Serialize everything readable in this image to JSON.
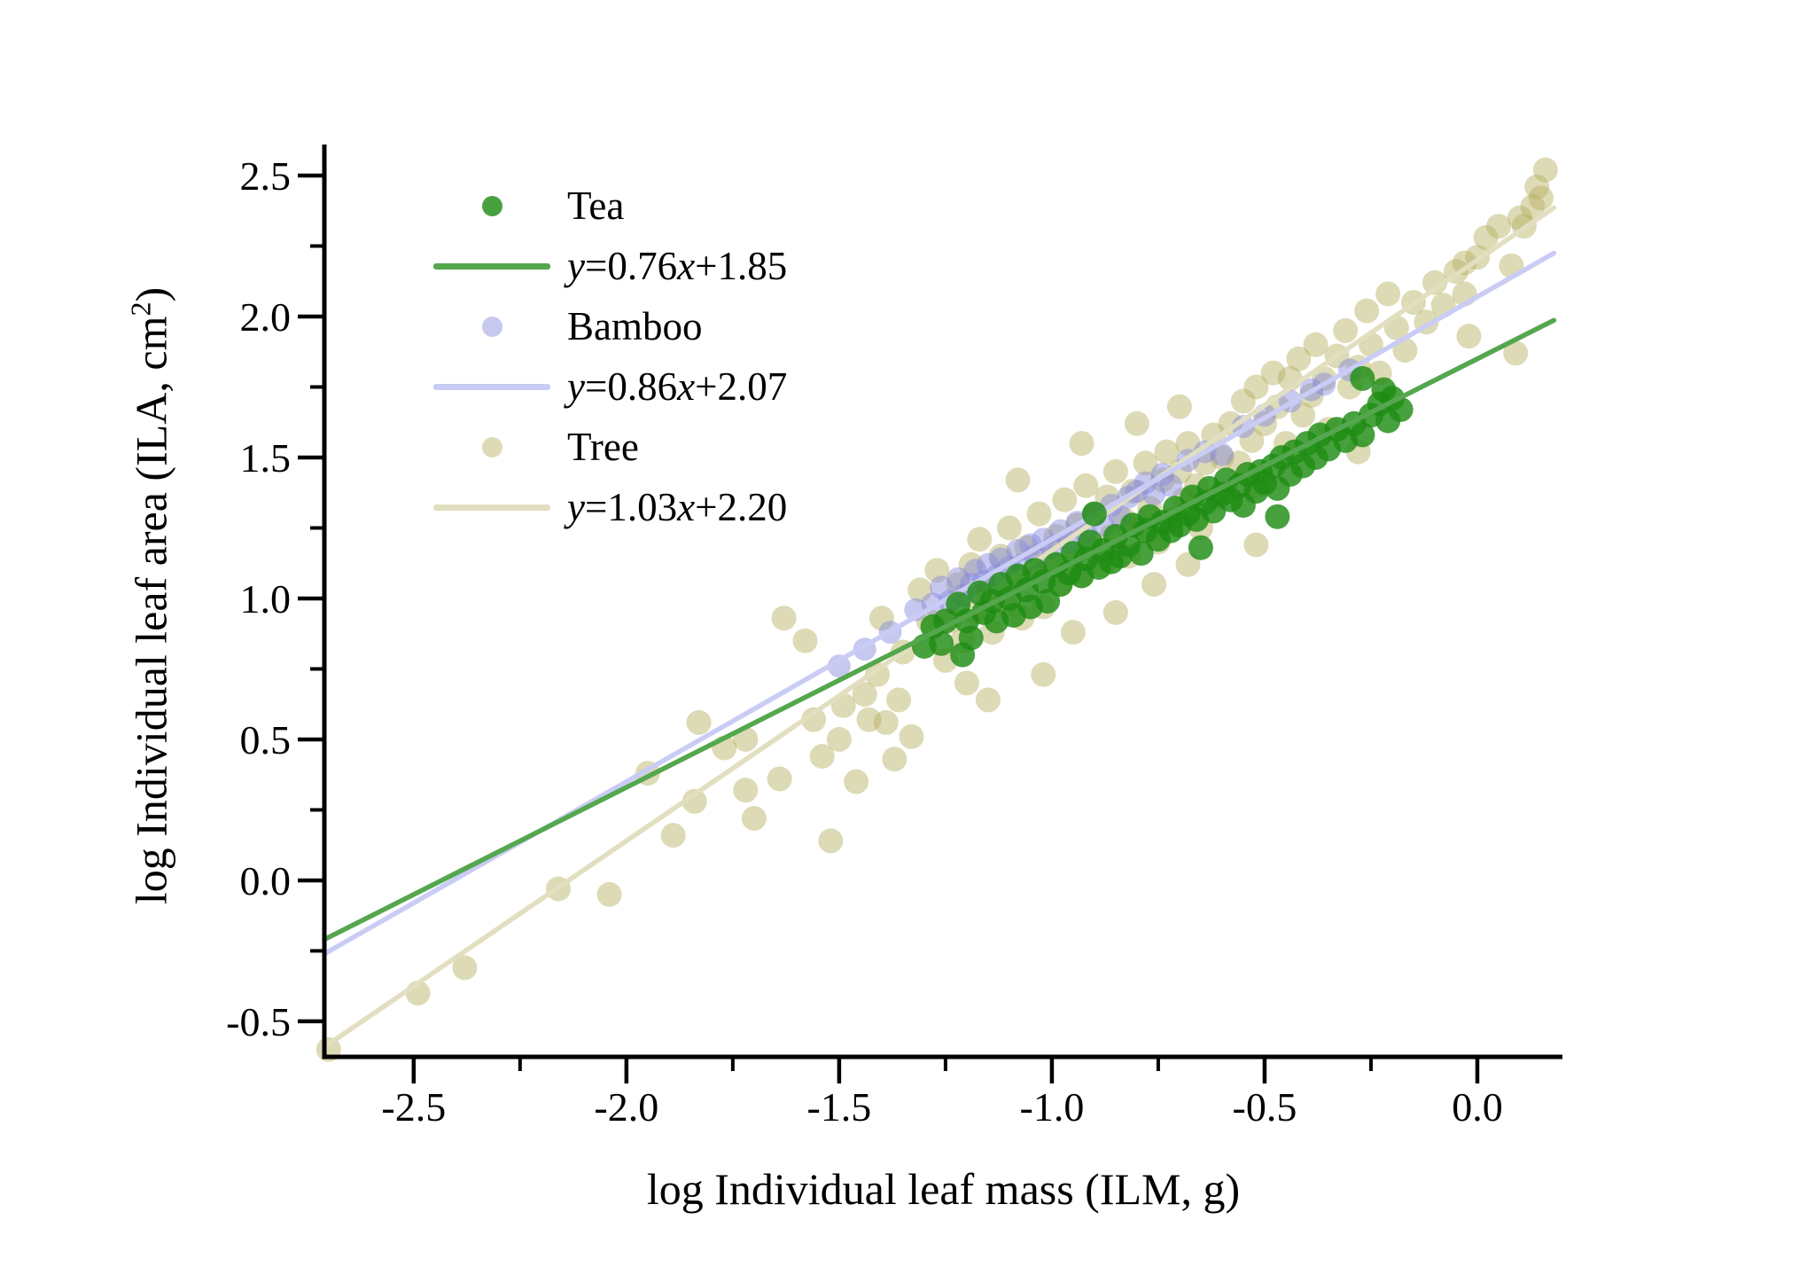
{
  "figure": {
    "background": "#ffffff"
  },
  "chart_data": {
    "type": "scatter",
    "xlabel": "log Individual leaf mass (ILM, g)",
    "ylabel": {
      "main": "log Individual leaf area (ILA, cm",
      "sup": "2",
      "close": ")"
    },
    "xlim": [
      -2.71,
      0.2
    ],
    "ylim": [
      -0.626,
      2.61
    ],
    "grid": false,
    "legend_position": "top-left",
    "x_ticks": {
      "values": [
        -2.5,
        -2.0,
        -1.5,
        -1.0,
        -0.5,
        0.0
      ],
      "labels": [
        "-2.5",
        "-2.0",
        "-1.5",
        "-1.0",
        "-0.5",
        "0.0"
      ],
      "minor": [
        -2.25,
        -1.75,
        -1.25,
        -0.75,
        -0.25
      ]
    },
    "y_ticks": {
      "values": [
        2.5,
        2.0,
        1.5,
        1.0,
        0.5,
        0.0,
        -0.5
      ],
      "labels": [
        "2.5",
        "2.0",
        "1.5",
        "1.0",
        "0.5",
        "0.0",
        "-0.5"
      ],
      "minor": [
        2.25,
        1.75,
        1.25,
        0.75,
        0.25,
        -0.25
      ]
    },
    "fit_x_range": [
      -2.71,
      0.18
    ],
    "series": [
      {
        "name": "Tea",
        "equation": "y=0.76x+1.85",
        "slope": 0.76,
        "intercept": 1.85,
        "dot_color": "#1f8c14",
        "dot_opacity": 0.82,
        "dot_radius": 14,
        "line_color": "#55a74e",
        "points": [
          [
            -1.3,
            0.83
          ],
          [
            -1.28,
            0.9
          ],
          [
            -1.26,
            0.84
          ],
          [
            -1.25,
            0.92
          ],
          [
            -1.22,
            0.98
          ],
          [
            -1.21,
            0.8
          ],
          [
            -1.2,
            0.92
          ],
          [
            -1.19,
            0.86
          ],
          [
            -1.17,
            1.02
          ],
          [
            -1.16,
            0.95
          ],
          [
            -1.14,
            0.99
          ],
          [
            -1.13,
            0.92
          ],
          [
            -1.12,
            1.05
          ],
          [
            -1.1,
            1.0
          ],
          [
            -1.09,
            0.94
          ],
          [
            -1.08,
            1.08
          ],
          [
            -1.06,
            1.03
          ],
          [
            -1.05,
            0.97
          ],
          [
            -1.04,
            1.1
          ],
          [
            -1.02,
            1.06
          ],
          [
            -1.01,
            0.99
          ],
          [
            -0.99,
            1.12
          ],
          [
            -0.98,
            1.05
          ],
          [
            -0.96,
            1.09
          ],
          [
            -0.95,
            1.16
          ],
          [
            -0.93,
            1.08
          ],
          [
            -0.92,
            1.14
          ],
          [
            -0.91,
            1.2
          ],
          [
            -0.9,
            1.3
          ],
          [
            -0.89,
            1.11
          ],
          [
            -0.88,
            1.17
          ],
          [
            -0.86,
            1.13
          ],
          [
            -0.85,
            1.22
          ],
          [
            -0.84,
            1.15
          ],
          [
            -0.82,
            1.19
          ],
          [
            -0.81,
            1.26
          ],
          [
            -0.79,
            1.16
          ],
          [
            -0.78,
            1.24
          ],
          [
            -0.77,
            1.29
          ],
          [
            -0.75,
            1.21
          ],
          [
            -0.74,
            1.27
          ],
          [
            -0.72,
            1.24
          ],
          [
            -0.71,
            1.32
          ],
          [
            -0.7,
            1.26
          ],
          [
            -0.68,
            1.3
          ],
          [
            -0.67,
            1.36
          ],
          [
            -0.66,
            1.28
          ],
          [
            -0.65,
            1.18
          ],
          [
            -0.64,
            1.34
          ],
          [
            -0.63,
            1.39
          ],
          [
            -0.62,
            1.31
          ],
          [
            -0.6,
            1.37
          ],
          [
            -0.59,
            1.42
          ],
          [
            -0.58,
            1.35
          ],
          [
            -0.56,
            1.4
          ],
          [
            -0.55,
            1.33
          ],
          [
            -0.54,
            1.44
          ],
          [
            -0.52,
            1.38
          ],
          [
            -0.51,
            1.45
          ],
          [
            -0.5,
            1.41
          ],
          [
            -0.48,
            1.47
          ],
          [
            -0.47,
            1.29
          ],
          [
            -0.47,
            1.39
          ],
          [
            -0.46,
            1.5
          ],
          [
            -0.44,
            1.44
          ],
          [
            -0.43,
            1.52
          ],
          [
            -0.41,
            1.47
          ],
          [
            -0.4,
            1.55
          ],
          [
            -0.38,
            1.5
          ],
          [
            -0.37,
            1.58
          ],
          [
            -0.35,
            1.53
          ],
          [
            -0.33,
            1.6
          ],
          [
            -0.31,
            1.56
          ],
          [
            -0.29,
            1.62
          ],
          [
            -0.27,
            1.78
          ],
          [
            -0.27,
            1.58
          ],
          [
            -0.25,
            1.65
          ],
          [
            -0.23,
            1.69
          ],
          [
            -0.22,
            1.74
          ],
          [
            -0.21,
            1.63
          ],
          [
            -0.2,
            1.71
          ],
          [
            -0.18,
            1.67
          ]
        ]
      },
      {
        "name": "Bamboo",
        "equation": "y=0.86x+2.07",
        "slope": 0.86,
        "intercept": 2.07,
        "dot_color": "#8285de",
        "dot_opacity": 0.45,
        "dot_radius": 13,
        "line_color": "#c9ccf4",
        "points": [
          [
            -1.5,
            0.76
          ],
          [
            -1.44,
            0.82
          ],
          [
            -1.38,
            0.88
          ],
          [
            -1.32,
            0.96
          ],
          [
            -1.28,
            0.98
          ],
          [
            -1.26,
            1.04
          ],
          [
            -1.24,
            0.99
          ],
          [
            -1.22,
            1.07
          ],
          [
            -1.21,
            1.01
          ],
          [
            -1.19,
            1.05
          ],
          [
            -1.18,
            1.1
          ],
          [
            -1.16,
            1.06
          ],
          [
            -1.15,
            1.12
          ],
          [
            -1.13,
            1.08
          ],
          [
            -1.12,
            1.14
          ],
          [
            -1.1,
            1.11
          ],
          [
            -1.08,
            1.17
          ],
          [
            -1.07,
            1.12
          ],
          [
            -1.05,
            1.19
          ],
          [
            -1.04,
            1.15
          ],
          [
            -1.02,
            1.21
          ],
          [
            -1.0,
            1.18
          ],
          [
            -0.98,
            1.24
          ],
          [
            -0.96,
            1.2
          ],
          [
            -0.94,
            1.27
          ],
          [
            -0.92,
            1.23
          ],
          [
            -0.9,
            1.3
          ],
          [
            -0.88,
            1.26
          ],
          [
            -0.86,
            1.33
          ],
          [
            -0.84,
            1.29
          ],
          [
            -0.82,
            1.36
          ],
          [
            -0.8,
            1.38
          ],
          [
            -0.78,
            1.41
          ],
          [
            -0.76,
            1.37
          ],
          [
            -0.74,
            1.44
          ],
          [
            -0.72,
            1.4
          ],
          [
            -0.68,
            1.49
          ],
          [
            -0.64,
            1.52
          ],
          [
            -0.6,
            1.51
          ],
          [
            -0.55,
            1.61
          ],
          [
            -0.5,
            1.65
          ],
          [
            -0.44,
            1.7
          ],
          [
            -0.39,
            1.74
          ],
          [
            -0.36,
            1.76
          ],
          [
            -0.3,
            1.81
          ]
        ]
      },
      {
        "name": "Tree",
        "equation": "y=1.03x+2.20",
        "slope": 1.03,
        "intercept": 2.2,
        "dot_color": "#b3ae5e",
        "dot_opacity": 0.45,
        "dot_radius": 14,
        "line_color": "#e2dfc0",
        "points": [
          [
            -2.7,
            -0.6
          ],
          [
            -2.49,
            -0.4
          ],
          [
            -2.38,
            -0.31
          ],
          [
            -2.16,
            -0.03
          ],
          [
            -2.04,
            -0.05
          ],
          [
            -1.95,
            0.38
          ],
          [
            -1.89,
            0.16
          ],
          [
            -1.84,
            0.28
          ],
          [
            -1.83,
            0.56
          ],
          [
            -1.77,
            0.47
          ],
          [
            -1.72,
            0.5
          ],
          [
            -1.72,
            0.32
          ],
          [
            -1.7,
            0.22
          ],
          [
            -1.64,
            0.36
          ],
          [
            -1.63,
            0.93
          ],
          [
            -1.58,
            0.85
          ],
          [
            -1.56,
            0.57
          ],
          [
            -1.54,
            0.44
          ],
          [
            -1.52,
            0.14
          ],
          [
            -1.5,
            0.5
          ],
          [
            -1.49,
            0.62
          ],
          [
            -1.46,
            0.35
          ],
          [
            -1.44,
            0.66
          ],
          [
            -1.43,
            0.57
          ],
          [
            -1.41,
            0.73
          ],
          [
            -1.4,
            0.93
          ],
          [
            -1.39,
            0.56
          ],
          [
            -1.37,
            0.43
          ],
          [
            -1.36,
            0.64
          ],
          [
            -1.35,
            0.81
          ],
          [
            -1.33,
            0.51
          ],
          [
            -1.31,
            1.03
          ],
          [
            -1.29,
            0.92
          ],
          [
            -1.27,
            1.1
          ],
          [
            -1.25,
            0.78
          ],
          [
            -1.24,
            0.92
          ],
          [
            -1.22,
            1.05
          ],
          [
            -1.21,
            0.85
          ],
          [
            -1.2,
            0.7
          ],
          [
            -1.19,
            1.12
          ],
          [
            -1.18,
            0.95
          ],
          [
            -1.17,
            1.21
          ],
          [
            -1.15,
            1.02
          ],
          [
            -1.15,
            0.64
          ],
          [
            -1.14,
            0.88
          ],
          [
            -1.12,
            1.15
          ],
          [
            -1.11,
            0.98
          ],
          [
            -1.1,
            1.25
          ],
          [
            -1.08,
            1.07
          ],
          [
            -1.08,
            1.42
          ],
          [
            -1.07,
            0.93
          ],
          [
            -1.06,
            1.18
          ],
          [
            -1.04,
            1.1
          ],
          [
            -1.03,
            1.3
          ],
          [
            -1.02,
            0.97
          ],
          [
            -1.02,
            0.73
          ],
          [
            -1.01,
            1.14
          ],
          [
            -0.99,
            1.22
          ],
          [
            -0.98,
            1.05
          ],
          [
            -0.97,
            1.35
          ],
          [
            -0.96,
            1.12
          ],
          [
            -0.95,
            0.88
          ],
          [
            -0.94,
            1.26
          ],
          [
            -0.93,
            1.08
          ],
          [
            -0.93,
            1.55
          ],
          [
            -0.92,
            1.4
          ],
          [
            -0.91,
            1.18
          ],
          [
            -0.9,
            1.3
          ],
          [
            -0.88,
            1.12
          ],
          [
            -0.87,
            1.36
          ],
          [
            -0.86,
            1.22
          ],
          [
            -0.85,
            1.45
          ],
          [
            -0.85,
            0.95
          ],
          [
            -0.83,
            1.28
          ],
          [
            -0.82,
            1.15
          ],
          [
            -0.81,
            1.38
          ],
          [
            -0.8,
            1.62
          ],
          [
            -0.79,
            1.25
          ],
          [
            -0.78,
            1.48
          ],
          [
            -0.77,
            1.32
          ],
          [
            -0.76,
            1.05
          ],
          [
            -0.75,
            1.2
          ],
          [
            -0.74,
            1.42
          ],
          [
            -0.73,
            1.52
          ],
          [
            -0.72,
            1.28
          ],
          [
            -0.7,
            1.45
          ],
          [
            -0.7,
            1.68
          ],
          [
            -0.69,
            1.35
          ],
          [
            -0.68,
            1.55
          ],
          [
            -0.68,
            1.12
          ],
          [
            -0.66,
            1.4
          ],
          [
            -0.65,
            1.25
          ],
          [
            -0.64,
            1.48
          ],
          [
            -0.62,
            1.58
          ],
          [
            -0.61,
            1.36
          ],
          [
            -0.6,
            1.5
          ],
          [
            -0.58,
            1.62
          ],
          [
            -0.56,
            1.48
          ],
          [
            -0.55,
            1.7
          ],
          [
            -0.53,
            1.56
          ],
          [
            -0.52,
            1.75
          ],
          [
            -0.52,
            1.4
          ],
          [
            -0.52,
            1.19
          ],
          [
            -0.5,
            1.62
          ],
          [
            -0.48,
            1.8
          ],
          [
            -0.47,
            1.68
          ],
          [
            -0.45,
            1.55
          ],
          [
            -0.44,
            1.78
          ],
          [
            -0.42,
            1.85
          ],
          [
            -0.41,
            1.65
          ],
          [
            -0.39,
            1.72
          ],
          [
            -0.38,
            1.9
          ],
          [
            -0.36,
            1.78
          ],
          [
            -0.35,
            1.6
          ],
          [
            -0.33,
            1.86
          ],
          [
            -0.31,
            1.95
          ],
          [
            -0.3,
            1.75
          ],
          [
            -0.28,
            1.82
          ],
          [
            -0.28,
            1.52
          ],
          [
            -0.26,
            2.02
          ],
          [
            -0.25,
            1.9
          ],
          [
            -0.23,
            1.8
          ],
          [
            -0.21,
            2.08
          ],
          [
            -0.19,
            1.96
          ],
          [
            -0.17,
            1.88
          ],
          [
            -0.15,
            2.05
          ],
          [
            -0.12,
            1.98
          ],
          [
            -0.1,
            2.12
          ],
          [
            -0.08,
            2.04
          ],
          [
            -0.05,
            2.16
          ],
          [
            -0.03,
            2.08
          ],
          [
            -0.03,
            2.19
          ],
          [
            -0.02,
            1.93
          ],
          [
            0.0,
            2.21
          ],
          [
            0.02,
            2.28
          ],
          [
            0.05,
            2.32
          ],
          [
            0.08,
            2.18
          ],
          [
            0.09,
            1.87
          ],
          [
            0.1,
            2.35
          ],
          [
            0.11,
            2.32
          ],
          [
            0.13,
            2.39
          ],
          [
            0.14,
            2.46
          ],
          [
            0.15,
            2.42
          ],
          [
            0.16,
            2.52
          ]
        ]
      }
    ]
  }
}
